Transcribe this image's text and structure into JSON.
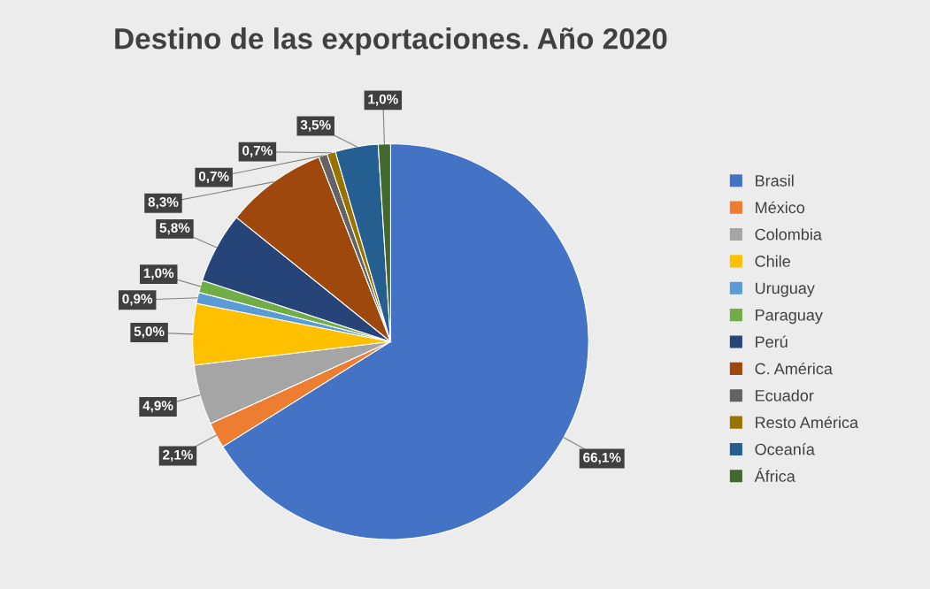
{
  "chart_data": {
    "type": "pie",
    "title": "Destino de las exportaciones. Año 2020",
    "categories": [
      "Brasil",
      "México",
      "Colombia",
      "Chile",
      "Uruguay",
      "Paraguay",
      "Perú",
      "C. América",
      "Ecuador",
      "Resto América",
      "Oceanía",
      "África"
    ],
    "values": [
      66.1,
      2.1,
      4.9,
      5.0,
      0.9,
      1.0,
      5.8,
      8.3,
      0.7,
      0.7,
      3.5,
      1.0
    ],
    "value_labels": [
      "66,1%",
      "2,1%",
      "4,9%",
      "5,0%",
      "0,9%",
      "1,0%",
      "5,8%",
      "8,3%",
      "0,7%",
      "0,7%",
      "3,5%",
      "1,0%"
    ],
    "colors": [
      "#4472c4",
      "#ed7d31",
      "#a5a5a5",
      "#ffc000",
      "#5b9bd5",
      "#70ad47",
      "#264478",
      "#9e480e",
      "#636363",
      "#997300",
      "#255e91",
      "#43682b"
    ],
    "legend": "right"
  }
}
